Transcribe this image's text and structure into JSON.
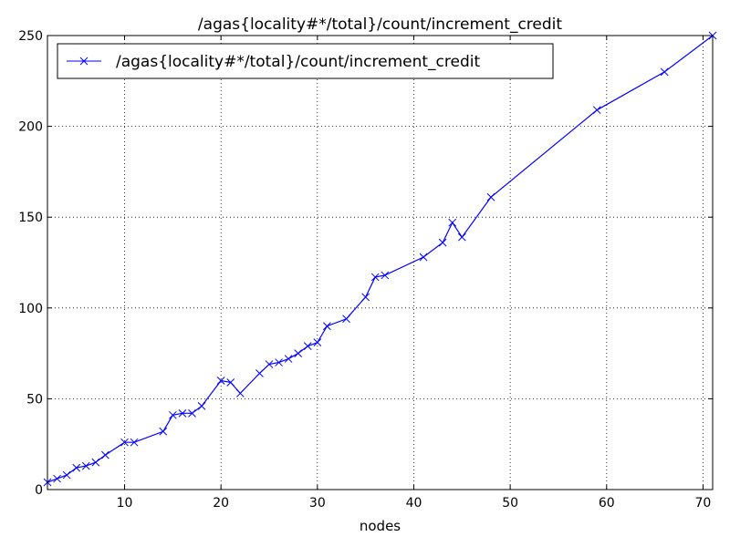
{
  "chart_data": {
    "type": "line",
    "title": "/agas{locality#*/total}/count/increment_credit",
    "xlabel": "nodes",
    "ylabel": "",
    "xlim": [
      2,
      71
    ],
    "ylim": [
      0,
      250
    ],
    "xticks": [
      10,
      20,
      30,
      40,
      50,
      60,
      70
    ],
    "yticks": [
      0,
      50,
      100,
      150,
      200,
      250
    ],
    "grid": true,
    "legend_position": "top-left",
    "series": [
      {
        "name": "/agas{locality#*/total}/count/increment_credit",
        "color": "#0000ff",
        "marker": "x",
        "x": [
          2,
          3,
          4,
          5,
          6,
          7,
          8,
          10,
          11,
          14,
          15,
          16,
          17,
          18,
          20,
          21,
          22,
          24,
          25,
          26,
          27,
          28,
          29,
          30,
          31,
          33,
          35,
          36,
          37,
          41,
          43,
          44,
          45,
          48,
          59,
          66,
          71
        ],
        "y": [
          4,
          6,
          8,
          12,
          13,
          15,
          19,
          26,
          26,
          32,
          41,
          42,
          42,
          46,
          60,
          59,
          53,
          64,
          69,
          70,
          72,
          75,
          79,
          81,
          90,
          94,
          106,
          117,
          118,
          128,
          136,
          147,
          139,
          161,
          209,
          230,
          250
        ]
      }
    ]
  }
}
